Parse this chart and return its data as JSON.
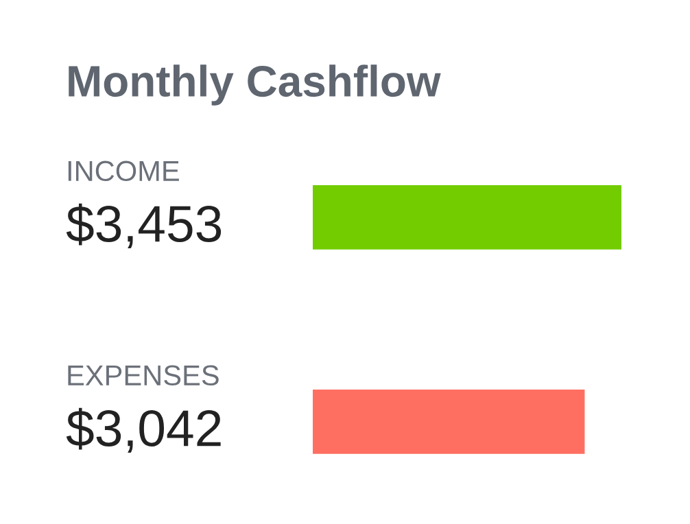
{
  "chart_data": {
    "type": "bar",
    "orientation": "horizontal",
    "title": "Monthly Cashflow",
    "categories": [
      "INCOME",
      "EXPENSES"
    ],
    "values": [
      3453,
      3042
    ],
    "colors": [
      "#72cc00",
      "#ff6f61"
    ],
    "value_labels": [
      "$3,453",
      "$3,042"
    ],
    "tick_labels": false,
    "grid": false,
    "legend": false
  }
}
